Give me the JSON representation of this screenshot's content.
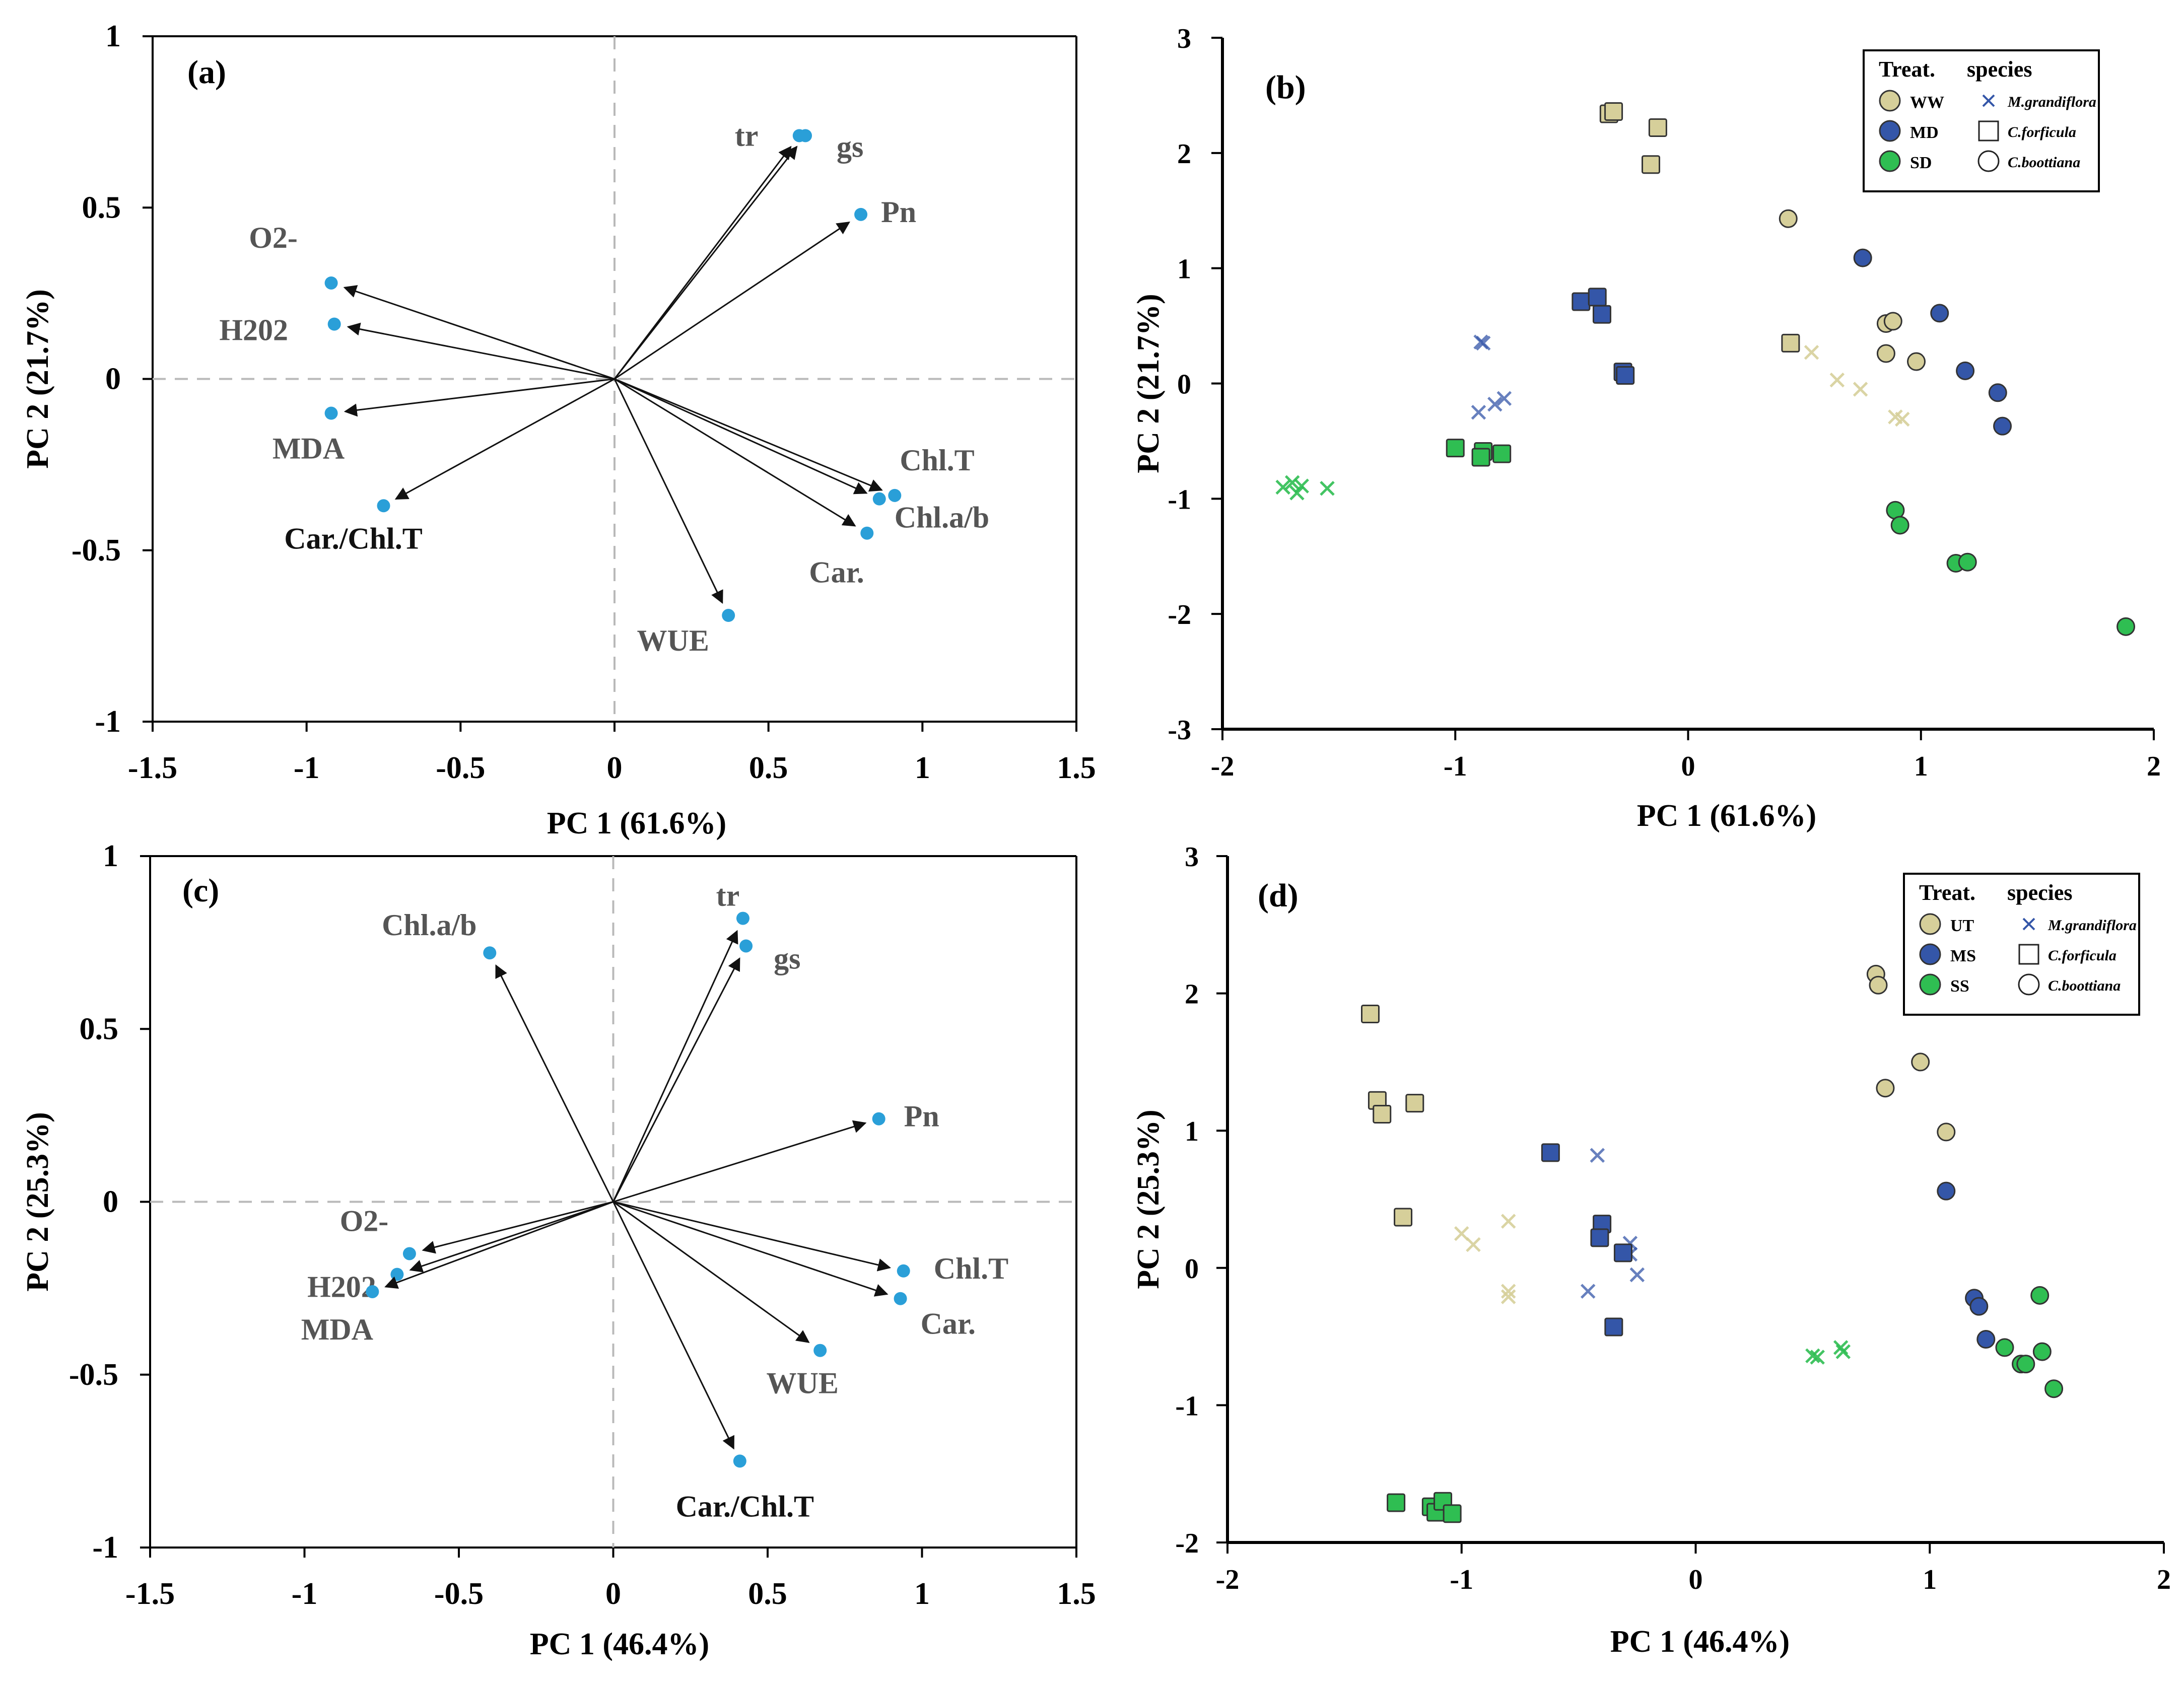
{
  "figure": {
    "panels": [
      "a",
      "b",
      "c",
      "d"
    ]
  },
  "colors": {
    "vector_point": "#2a9fd8",
    "arrow": "#111111",
    "ref_line": "#b9b9b9",
    "label_gray": "#555555",
    "label_black": "#111111",
    "treat_1": "#d6cf9a",
    "treat_2": "#3456a8",
    "treat_3": "#2fbe52",
    "stroke_dark": "#333333"
  },
  "chart_data": [
    {
      "panel": "a",
      "type": "scatter",
      "title": "(a)",
      "xlabel": "PC 1 (61.6%)",
      "ylabel": "PC 2 (21.7%)",
      "xlim": [
        -1.5,
        1.5
      ],
      "ylim": [
        -1,
        1
      ],
      "xticks": [
        "-1.5",
        "-1",
        "-0.5",
        "0",
        "0.5",
        "1",
        "1.5"
      ],
      "yticks": [
        "-1",
        "-0.5",
        "0",
        "0.5",
        "1"
      ],
      "vectors": [
        {
          "label": "tr",
          "x": 0.6,
          "y": 0.71
        },
        {
          "label": "gs",
          "x": 0.62,
          "y": 0.71
        },
        {
          "label": "Pn",
          "x": 0.8,
          "y": 0.48
        },
        {
          "label": "O2-",
          "x": -0.92,
          "y": 0.28
        },
        {
          "label": "H202",
          "x": -0.91,
          "y": 0.16
        },
        {
          "label": "MDA",
          "x": -0.92,
          "y": -0.1
        },
        {
          "label": "Car./Chl.T",
          "x": -0.75,
          "y": -0.37
        },
        {
          "label": "Chl.T",
          "x": 0.91,
          "y": -0.34
        },
        {
          "label": "Chl.a/b",
          "x": 0.86,
          "y": -0.35
        },
        {
          "label": "Car.",
          "x": 0.82,
          "y": -0.45
        },
        {
          "label": "WUE",
          "x": 0.37,
          "y": -0.69
        }
      ]
    },
    {
      "panel": "b",
      "type": "scatter",
      "title": "(b)",
      "xlabel": "PC 1 (61.6%)",
      "ylabel": "PC 2 (21.7%)",
      "xlim": [
        -2,
        2
      ],
      "ylim": [
        -3,
        3
      ],
      "xticks": [
        "-2",
        "-1",
        "0",
        "1",
        "2"
      ],
      "yticks": [
        "-3",
        "-2",
        "-1",
        "0",
        "1",
        "2",
        "3"
      ],
      "legend": {
        "treat_title": "Treat.",
        "species_title": "species",
        "treatments": [
          "WW",
          "MD",
          "SD"
        ],
        "species": [
          "M.grandiflora",
          "C.forficula",
          "C.boottiana"
        ],
        "position": "top-right"
      },
      "series": [
        {
          "name": "WW M.grandiflora",
          "treatment": 0,
          "marker": "x",
          "points": [
            [
              0.53,
              0.27
            ],
            [
              0.64,
              0.03
            ],
            [
              0.74,
              -0.05
            ],
            [
              0.89,
              -0.29
            ],
            [
              0.92,
              -0.31
            ]
          ]
        },
        {
          "name": "WW C.forficula",
          "treatment": 0,
          "marker": "square",
          "points": [
            [
              -0.34,
              2.34
            ],
            [
              -0.32,
              2.36
            ],
            [
              -0.13,
              2.22
            ],
            [
              -0.16,
              1.9
            ],
            [
              0.44,
              0.35
            ]
          ]
        },
        {
          "name": "WW C.boottiana",
          "treatment": 0,
          "marker": "circle",
          "points": [
            [
              0.43,
              1.43
            ],
            [
              0.85,
              0.52
            ],
            [
              0.88,
              0.54
            ],
            [
              0.85,
              0.26
            ],
            [
              0.98,
              0.19
            ]
          ]
        },
        {
          "name": "MD M.grandiflora",
          "treatment": 1,
          "marker": "x",
          "points": [
            [
              -0.89,
              0.36
            ],
            [
              -0.88,
              0.35
            ],
            [
              -0.9,
              -0.25
            ],
            [
              -0.83,
              -0.18
            ],
            [
              -0.79,
              -0.13
            ]
          ]
        },
        {
          "name": "MD C.forficula",
          "treatment": 1,
          "marker": "square",
          "points": [
            [
              -0.46,
              0.71
            ],
            [
              -0.39,
              0.75
            ],
            [
              -0.37,
              0.6
            ],
            [
              -0.28,
              0.1
            ],
            [
              -0.27,
              0.07
            ]
          ]
        },
        {
          "name": "MD C.boottiana",
          "treatment": 1,
          "marker": "circle",
          "points": [
            [
              0.75,
              1.09
            ],
            [
              1.08,
              0.61
            ],
            [
              1.19,
              0.11
            ],
            [
              1.33,
              -0.08
            ],
            [
              1.35,
              -0.37
            ]
          ]
        },
        {
          "name": "SD M.grandiflora",
          "treatment": 2,
          "marker": "x",
          "points": [
            [
              -1.74,
              -0.9
            ],
            [
              -1.7,
              -0.86
            ],
            [
              -1.68,
              -0.95
            ],
            [
              -1.66,
              -0.89
            ],
            [
              -1.55,
              -0.91
            ]
          ]
        },
        {
          "name": "SD C.forficula",
          "treatment": 2,
          "marker": "square",
          "points": [
            [
              -1.0,
              -0.56
            ],
            [
              -0.88,
              -0.59
            ],
            [
              -0.89,
              -0.64
            ],
            [
              -0.8,
              -0.61
            ]
          ]
        },
        {
          "name": "SD C.boottiana",
          "treatment": 2,
          "marker": "circle",
          "points": [
            [
              0.89,
              -1.1
            ],
            [
              0.91,
              -1.23
            ],
            [
              1.15,
              -1.56
            ],
            [
              1.2,
              -1.55
            ],
            [
              1.88,
              -2.11
            ]
          ]
        }
      ]
    },
    {
      "panel": "c",
      "type": "scatter",
      "title": "(c)",
      "xlabel": "PC 1 (46.4%)",
      "ylabel": "PC 2 (25.3%)",
      "xlim": [
        -1.5,
        1.5
      ],
      "ylim": [
        -1,
        1
      ],
      "xticks": [
        "-1.5",
        "-1",
        "-0.5",
        "0",
        "0.5",
        "1",
        "1.5"
      ],
      "yticks": [
        "-1",
        "-0.5",
        "0",
        "0.5",
        "1"
      ],
      "vectors": [
        {
          "label": "Chl.a/b",
          "x": -0.4,
          "y": 0.72
        },
        {
          "label": "tr",
          "x": 0.42,
          "y": 0.82
        },
        {
          "label": "gs",
          "x": 0.43,
          "y": 0.74
        },
        {
          "label": "Pn",
          "x": 0.86,
          "y": 0.24
        },
        {
          "label": "O2-",
          "x": -0.66,
          "y": -0.15
        },
        {
          "label": "H202",
          "x": -0.7,
          "y": -0.21
        },
        {
          "label": "MDA",
          "x": -0.78,
          "y": -0.26
        },
        {
          "label": "Chl.T",
          "x": 0.94,
          "y": -0.2
        },
        {
          "label": "Car.",
          "x": 0.93,
          "y": -0.28
        },
        {
          "label": "WUE",
          "x": 0.67,
          "y": -0.43
        },
        {
          "label": "Car./Chl.T",
          "x": 0.41,
          "y": -0.75
        }
      ]
    },
    {
      "panel": "d",
      "type": "scatter",
      "title": "(d)",
      "xlabel": "PC 1 (46.4%)",
      "ylabel": "PC 2 (25.3%)",
      "xlim": [
        -2,
        2
      ],
      "ylim": [
        -2,
        3
      ],
      "xticks": [
        "-2",
        "-1",
        "0",
        "1",
        "2"
      ],
      "yticks": [
        "-2",
        "-1",
        "0",
        "1",
        "2",
        "3"
      ],
      "legend": {
        "treat_title": "Treat.",
        "species_title": "species",
        "treatments": [
          "UT",
          "MS",
          "SS"
        ],
        "species": [
          "M.grandiflora",
          "C.forficula",
          "C.boottiana"
        ],
        "position": "top-right"
      },
      "series": [
        {
          "name": "UT M.grandiflora",
          "treatment": 0,
          "marker": "x",
          "points": [
            [
              -1.0,
              0.25
            ],
            [
              -0.95,
              0.17
            ],
            [
              -0.8,
              0.34
            ],
            [
              -0.8,
              -0.17
            ],
            [
              -0.8,
              -0.21
            ]
          ]
        },
        {
          "name": "UT C.forficula",
          "treatment": 0,
          "marker": "square",
          "points": [
            [
              -1.39,
              1.85
            ],
            [
              -1.36,
              1.22
            ],
            [
              -1.34,
              1.12
            ],
            [
              -1.2,
              1.2
            ],
            [
              -1.25,
              0.37
            ]
          ]
        },
        {
          "name": "UT C.boottiana",
          "treatment": 0,
          "marker": "circle",
          "points": [
            [
              0.77,
              2.14
            ],
            [
              0.78,
              2.06
            ],
            [
              0.81,
              1.31
            ],
            [
              0.96,
              1.5
            ],
            [
              1.07,
              0.99
            ]
          ]
        },
        {
          "name": "MS M.grandiflora",
          "treatment": 1,
          "marker": "x",
          "points": [
            [
              -0.42,
              0.82
            ],
            [
              -0.28,
              0.18
            ],
            [
              -0.28,
              0.1
            ],
            [
              -0.25,
              -0.05
            ],
            [
              -0.46,
              -0.17
            ]
          ]
        },
        {
          "name": "MS C.forficula",
          "treatment": 1,
          "marker": "square",
          "points": [
            [
              -0.62,
              0.84
            ],
            [
              -0.4,
              0.32
            ],
            [
              -0.41,
              0.22
            ],
            [
              -0.31,
              0.11
            ],
            [
              -0.35,
              -0.43
            ]
          ]
        },
        {
          "name": "MS C.boottiana",
          "treatment": 1,
          "marker": "circle",
          "points": [
            [
              1.07,
              0.56
            ],
            [
              1.19,
              -0.22
            ],
            [
              1.21,
              -0.28
            ],
            [
              1.24,
              -0.52
            ]
          ]
        },
        {
          "name": "SS M.grandiflora",
          "treatment": 2,
          "marker": "x",
          "points": [
            [
              0.5,
              -0.64
            ],
            [
              0.52,
              -0.65
            ],
            [
              0.62,
              -0.58
            ],
            [
              0.63,
              -0.61
            ]
          ]
        },
        {
          "name": "SS C.forficula",
          "treatment": 2,
          "marker": "square",
          "points": [
            [
              -1.28,
              -1.71
            ],
            [
              -1.13,
              -1.74
            ],
            [
              -1.11,
              -1.78
            ],
            [
              -1.08,
              -1.7
            ],
            [
              -1.04,
              -1.79
            ]
          ]
        },
        {
          "name": "SS C.boottiana",
          "treatment": 2,
          "marker": "circle",
          "points": [
            [
              1.32,
              -0.58
            ],
            [
              1.39,
              -0.7
            ],
            [
              1.41,
              -0.7
            ],
            [
              1.47,
              -0.2
            ],
            [
              1.48,
              -0.61
            ],
            [
              1.53,
              -0.88
            ]
          ]
        }
      ]
    }
  ]
}
